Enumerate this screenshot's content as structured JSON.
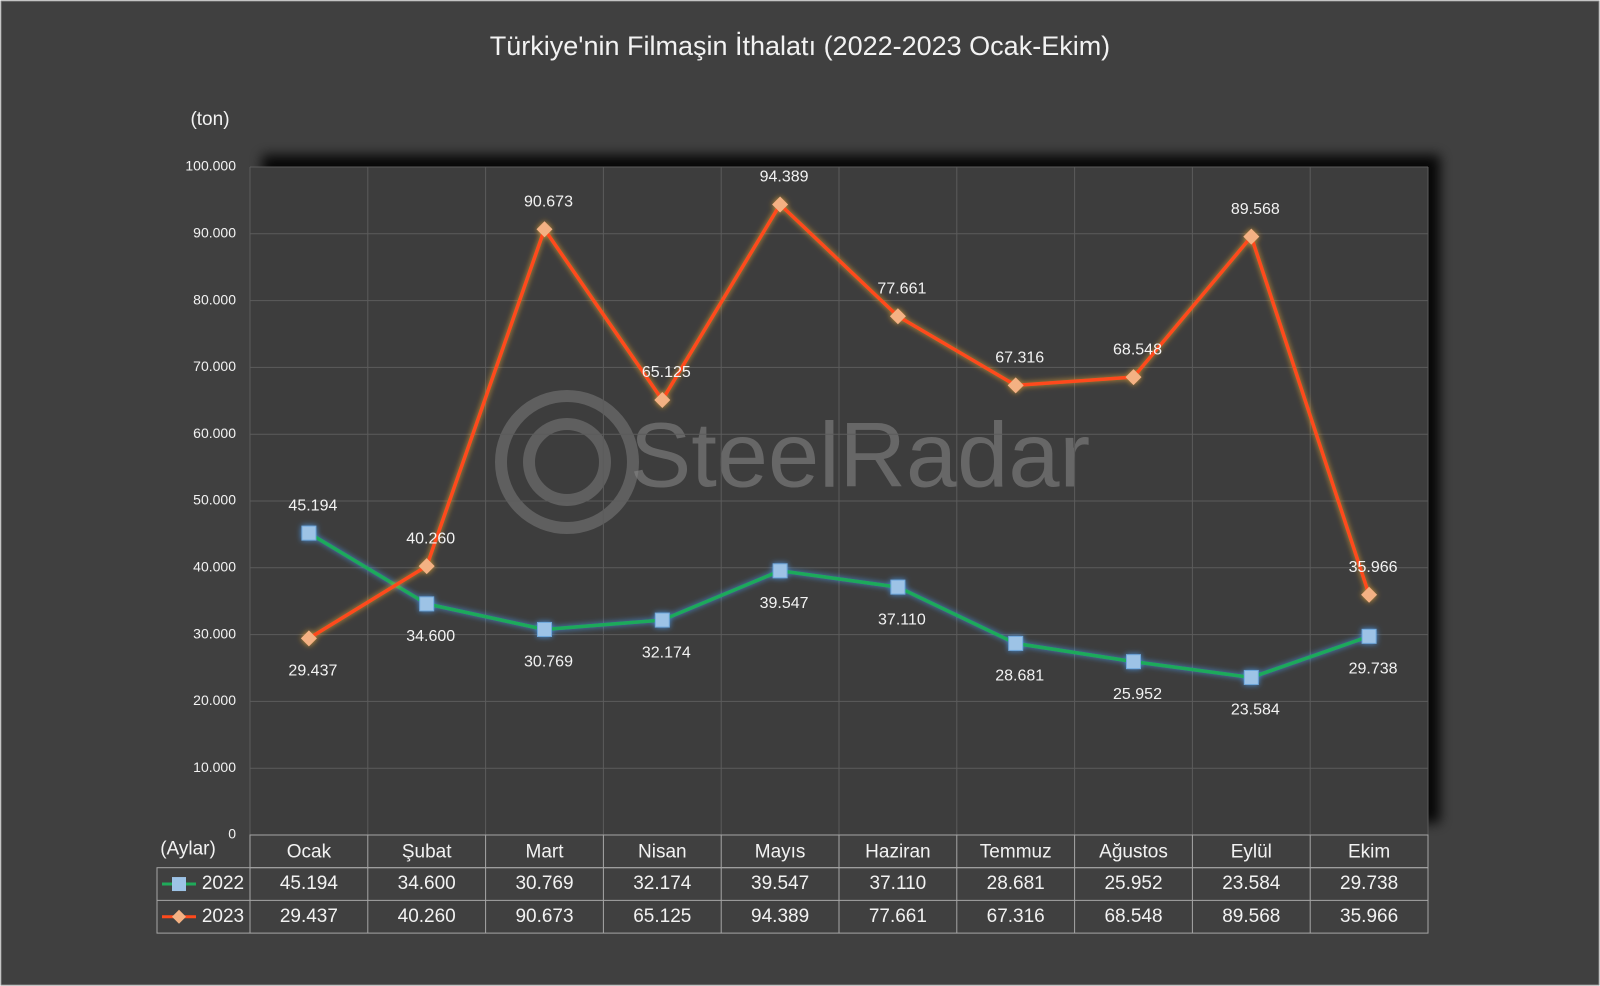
{
  "chart_data": {
    "type": "line",
    "title": "Türkiye'nin Filmaşin İthalatı (2022-2023 Ocak-Ekim)",
    "y_axis_label": "(ton)",
    "x_axis_label": "(Aylar)",
    "watermark": "SteelRadar",
    "categories": [
      "Ocak",
      "Şubat",
      "Mart",
      "Nisan",
      "Mayıs",
      "Haziran",
      "Temmuz",
      "Ağustos",
      "Eylül",
      "Ekim"
    ],
    "series": [
      {
        "name": "2022",
        "color": "#1faa5a",
        "marker": "square",
        "marker_color": "#9dc3e6",
        "values": [
          45194,
          34600,
          30769,
          32174,
          39547,
          37110,
          28681,
          25952,
          23584,
          29738
        ],
        "value_labels": [
          "45.194",
          "34.600",
          "30.769",
          "32.174",
          "39.547",
          "37.110",
          "28.681",
          "25.952",
          "23.584",
          "29.738"
        ]
      },
      {
        "name": "2023",
        "color": "#ff4a1c",
        "marker": "diamond",
        "marker_color": "#f4b183",
        "values": [
          29437,
          40260,
          90673,
          65125,
          94389,
          77661,
          67316,
          68548,
          89568,
          35966
        ],
        "value_labels": [
          "29.437",
          "40.260",
          "90.673",
          "65.125",
          "94.389",
          "77.661",
          "67.316",
          "68.548",
          "89.568",
          "35.966"
        ]
      }
    ],
    "ylim": [
      0,
      100000
    ],
    "yticks": [
      0,
      {
        "value": 10000,
        "label": "10.000"
      },
      {
        "value": 20000,
        "label": "20.000"
      },
      {
        "value": 30000,
        "label": "30.000"
      },
      {
        "value": 40000,
        "label": "40.000"
      },
      {
        "value": 50000,
        "label": "50.000"
      },
      {
        "value": 60000,
        "label": "60.000"
      },
      {
        "value": 70000,
        "label": "70.000"
      },
      {
        "value": 80000,
        "label": "80.000"
      },
      {
        "value": 90000,
        "label": "90.000"
      },
      {
        "value": 100000,
        "label": "100.000"
      }
    ],
    "grid": true,
    "data_table": true
  }
}
